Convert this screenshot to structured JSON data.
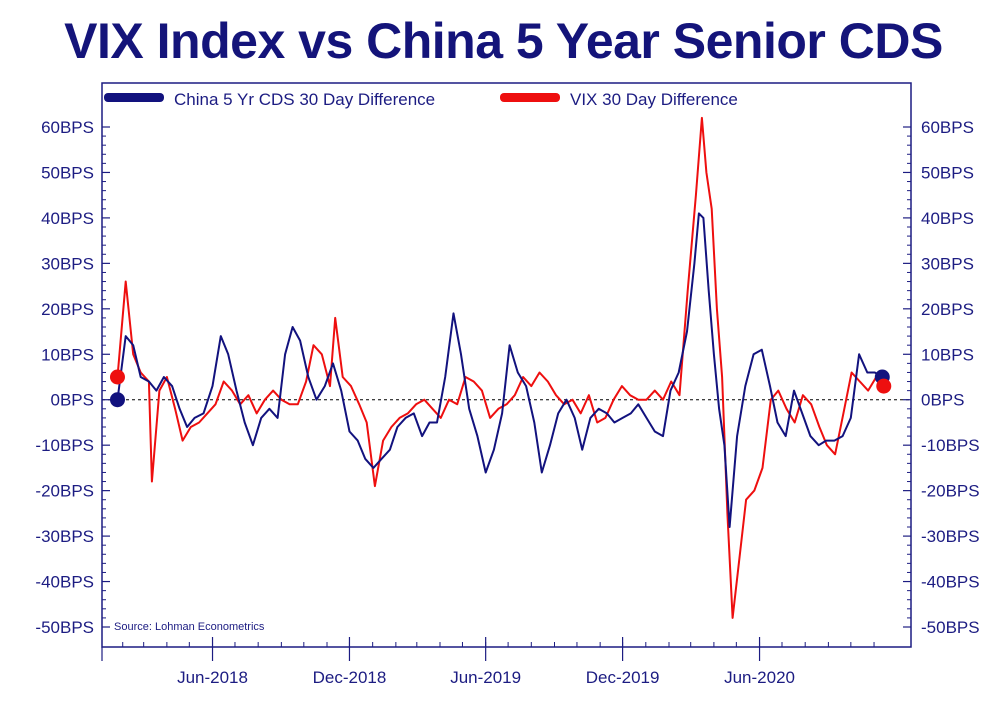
{
  "chart_data": {
    "type": "line",
    "title": "VIX Index vs China 5 Year Senior CDS",
    "xlabel": "",
    "ylabel": "",
    "source": "Source: Lohman Econometrics",
    "ylim": [
      -50,
      60
    ],
    "y_ticks": [
      "60BPS",
      "50BPS",
      "40BPS",
      "30BPS",
      "20BPS",
      "10BPS",
      "0BPS",
      "-10BPS",
      "-20BPS",
      "-30BPS",
      "-40BPS",
      "-50BPS"
    ],
    "y_tick_values": [
      60,
      50,
      40,
      30,
      20,
      10,
      0,
      -10,
      -20,
      -30,
      -40,
      -50
    ],
    "x_range": [
      "2018-01-15",
      "2020-11-25"
    ],
    "x_ticks": [
      {
        "label": "Jun-2018",
        "date": "2018-06-01"
      },
      {
        "label": "Dec-2018",
        "date": "2018-12-01"
      },
      {
        "label": "Jun-2019",
        "date": "2019-06-01"
      },
      {
        "label": "Dec-2019",
        "date": "2019-12-01"
      },
      {
        "label": "Jun-2020",
        "date": "2020-06-01"
      }
    ],
    "legend_placement": "top-left",
    "series": [
      {
        "name": "China 5 Yr CDS 30 Day Difference",
        "color": "#12127e",
        "points": [
          [
            "2018-01-25",
            0
          ],
          [
            "2018-02-05",
            14
          ],
          [
            "2018-02-15",
            12
          ],
          [
            "2018-02-25",
            5
          ],
          [
            "2018-03-08",
            4
          ],
          [
            "2018-03-18",
            2
          ],
          [
            "2018-03-28",
            5
          ],
          [
            "2018-04-08",
            3
          ],
          [
            "2018-04-18",
            -2
          ],
          [
            "2018-04-28",
            -6
          ],
          [
            "2018-05-08",
            -4
          ],
          [
            "2018-05-20",
            -3
          ],
          [
            "2018-06-01",
            3
          ],
          [
            "2018-06-12",
            14
          ],
          [
            "2018-06-22",
            10
          ],
          [
            "2018-07-03",
            2
          ],
          [
            "2018-07-14",
            -5
          ],
          [
            "2018-07-25",
            -10
          ],
          [
            "2018-08-05",
            -4
          ],
          [
            "2018-08-16",
            -2
          ],
          [
            "2018-08-27",
            -4
          ],
          [
            "2018-09-06",
            10
          ],
          [
            "2018-09-16",
            16
          ],
          [
            "2018-09-26",
            13
          ],
          [
            "2018-10-07",
            5
          ],
          [
            "2018-10-18",
            0
          ],
          [
            "2018-10-29",
            3
          ],
          [
            "2018-11-09",
            8
          ],
          [
            "2018-11-20",
            2
          ],
          [
            "2018-12-01",
            -7
          ],
          [
            "2018-12-12",
            -9
          ],
          [
            "2018-12-22",
            -13
          ],
          [
            "2019-01-02",
            -15
          ],
          [
            "2019-01-13",
            -13
          ],
          [
            "2019-01-24",
            -11
          ],
          [
            "2019-02-03",
            -6
          ],
          [
            "2019-02-14",
            -4
          ],
          [
            "2019-02-25",
            -3
          ],
          [
            "2019-03-08",
            -8
          ],
          [
            "2019-03-18",
            -5
          ],
          [
            "2019-03-28",
            -5
          ],
          [
            "2019-04-08",
            5
          ],
          [
            "2019-04-19",
            19
          ],
          [
            "2019-04-29",
            10
          ],
          [
            "2019-05-10",
            -2
          ],
          [
            "2019-05-21",
            -8
          ],
          [
            "2019-06-01",
            -16
          ],
          [
            "2019-06-12",
            -11
          ],
          [
            "2019-06-23",
            -3
          ],
          [
            "2019-07-03",
            12
          ],
          [
            "2019-07-14",
            6
          ],
          [
            "2019-07-25",
            3
          ],
          [
            "2019-08-05",
            -5
          ],
          [
            "2019-08-15",
            -16
          ],
          [
            "2019-08-26",
            -10
          ],
          [
            "2019-09-06",
            -3
          ],
          [
            "2019-09-17",
            0
          ],
          [
            "2019-09-28",
            -4
          ],
          [
            "2019-10-08",
            -11
          ],
          [
            "2019-10-19",
            -4
          ],
          [
            "2019-10-30",
            -2
          ],
          [
            "2019-11-10",
            -3
          ],
          [
            "2019-11-20",
            -5
          ],
          [
            "2019-12-01",
            -4
          ],
          [
            "2019-12-12",
            -3
          ],
          [
            "2019-12-22",
            -1
          ],
          [
            "2020-01-02",
            -4
          ],
          [
            "2020-01-13",
            -7
          ],
          [
            "2020-01-24",
            -8
          ],
          [
            "2020-02-03",
            2
          ],
          [
            "2020-02-14",
            6
          ],
          [
            "2020-02-25",
            15
          ],
          [
            "2020-03-06",
            30
          ],
          [
            "2020-03-12",
            41
          ],
          [
            "2020-03-18",
            40
          ],
          [
            "2020-03-25",
            24
          ],
          [
            "2020-04-01",
            10
          ],
          [
            "2020-04-08",
            -2
          ],
          [
            "2020-04-15",
            -10
          ],
          [
            "2020-04-22",
            -28
          ],
          [
            "2020-05-02",
            -8
          ],
          [
            "2020-05-13",
            3
          ],
          [
            "2020-05-24",
            10
          ],
          [
            "2020-06-04",
            11
          ],
          [
            "2020-06-15",
            3
          ],
          [
            "2020-06-25",
            -5
          ],
          [
            "2020-07-06",
            -8
          ],
          [
            "2020-07-17",
            2
          ],
          [
            "2020-07-28",
            -3
          ],
          [
            "2020-08-08",
            -8
          ],
          [
            "2020-08-19",
            -10
          ],
          [
            "2020-08-29",
            -9
          ],
          [
            "2020-09-09",
            -9
          ],
          [
            "2020-09-20",
            -8
          ],
          [
            "2020-10-01",
            -4
          ],
          [
            "2020-10-12",
            10
          ],
          [
            "2020-10-23",
            6
          ],
          [
            "2020-11-02",
            6
          ],
          [
            "2020-11-12",
            5
          ]
        ],
        "end_markers": [
          [
            "2018-01-25",
            0
          ],
          [
            "2020-11-12",
            5
          ]
        ]
      },
      {
        "name": "VIX 30 Day Difference",
        "color": "#ee0f0f",
        "points": [
          [
            "2018-01-25",
            5
          ],
          [
            "2018-02-05",
            26
          ],
          [
            "2018-02-15",
            10
          ],
          [
            "2018-02-25",
            6
          ],
          [
            "2018-03-08",
            4
          ],
          [
            "2018-03-12",
            -18
          ],
          [
            "2018-03-22",
            2
          ],
          [
            "2018-04-01",
            5
          ],
          [
            "2018-04-12",
            -2
          ],
          [
            "2018-04-22",
            -9
          ],
          [
            "2018-05-03",
            -6
          ],
          [
            "2018-05-14",
            -5
          ],
          [
            "2018-05-25",
            -3
          ],
          [
            "2018-06-05",
            -1
          ],
          [
            "2018-06-16",
            4
          ],
          [
            "2018-06-27",
            2
          ],
          [
            "2018-07-08",
            -1
          ],
          [
            "2018-07-19",
            1
          ],
          [
            "2018-07-30",
            -3
          ],
          [
            "2018-08-10",
            0
          ],
          [
            "2018-08-21",
            2
          ],
          [
            "2018-09-01",
            0
          ],
          [
            "2018-09-12",
            -1
          ],
          [
            "2018-09-23",
            -1
          ],
          [
            "2018-10-04",
            4
          ],
          [
            "2018-10-14",
            12
          ],
          [
            "2018-10-25",
            10
          ],
          [
            "2018-11-05",
            3
          ],
          [
            "2018-11-12",
            18
          ],
          [
            "2018-11-22",
            5
          ],
          [
            "2018-12-03",
            3
          ],
          [
            "2018-12-14",
            -1
          ],
          [
            "2018-12-24",
            -5
          ],
          [
            "2019-01-04",
            -19
          ],
          [
            "2019-01-15",
            -9
          ],
          [
            "2019-01-26",
            -6
          ],
          [
            "2019-02-06",
            -4
          ],
          [
            "2019-02-17",
            -3
          ],
          [
            "2019-02-28",
            -1
          ],
          [
            "2019-03-11",
            0
          ],
          [
            "2019-03-22",
            -2
          ],
          [
            "2019-04-02",
            -4
          ],
          [
            "2019-04-13",
            0
          ],
          [
            "2019-04-24",
            -1
          ],
          [
            "2019-05-05",
            5
          ],
          [
            "2019-05-16",
            4
          ],
          [
            "2019-05-27",
            2
          ],
          [
            "2019-06-07",
            -4
          ],
          [
            "2019-06-18",
            -2
          ],
          [
            "2019-06-29",
            -1
          ],
          [
            "2019-07-10",
            1
          ],
          [
            "2019-07-21",
            5
          ],
          [
            "2019-08-01",
            3
          ],
          [
            "2019-08-12",
            6
          ],
          [
            "2019-08-23",
            4
          ],
          [
            "2019-09-03",
            1
          ],
          [
            "2019-09-14",
            -1
          ],
          [
            "2019-09-25",
            0
          ],
          [
            "2019-10-06",
            -3
          ],
          [
            "2019-10-17",
            1
          ],
          [
            "2019-10-28",
            -5
          ],
          [
            "2019-11-08",
            -4
          ],
          [
            "2019-11-19",
            0
          ],
          [
            "2019-11-30",
            3
          ],
          [
            "2019-12-11",
            1
          ],
          [
            "2019-12-22",
            0
          ],
          [
            "2020-01-02",
            0
          ],
          [
            "2020-01-13",
            2
          ],
          [
            "2020-01-24",
            0
          ],
          [
            "2020-02-04",
            4
          ],
          [
            "2020-02-15",
            1
          ],
          [
            "2020-02-26",
            24
          ],
          [
            "2020-03-08",
            45
          ],
          [
            "2020-03-16",
            62
          ],
          [
            "2020-03-22",
            50
          ],
          [
            "2020-03-29",
            42
          ],
          [
            "2020-04-05",
            20
          ],
          [
            "2020-04-12",
            5
          ],
          [
            "2020-04-19",
            -25
          ],
          [
            "2020-04-26",
            -48
          ],
          [
            "2020-05-03",
            -38
          ],
          [
            "2020-05-14",
            -22
          ],
          [
            "2020-05-25",
            -20
          ],
          [
            "2020-06-05",
            -15
          ],
          [
            "2020-06-16",
            0
          ],
          [
            "2020-06-26",
            2
          ],
          [
            "2020-07-07",
            -2
          ],
          [
            "2020-07-18",
            -5
          ],
          [
            "2020-07-29",
            1
          ],
          [
            "2020-08-09",
            -1
          ],
          [
            "2020-08-20",
            -6
          ],
          [
            "2020-08-30",
            -10
          ],
          [
            "2020-09-10",
            -12
          ],
          [
            "2020-09-21",
            -3
          ],
          [
            "2020-10-02",
            6
          ],
          [
            "2020-10-13",
            4
          ],
          [
            "2020-10-24",
            2
          ],
          [
            "2020-11-04",
            5
          ],
          [
            "2020-11-14",
            3
          ]
        ],
        "end_markers": [
          [
            "2018-01-25",
            5
          ],
          [
            "2020-11-14",
            3
          ]
        ]
      }
    ]
  },
  "colors": {
    "axis": "#1c1c82",
    "title": "#14147a",
    "cds": "#12127e",
    "vix": "#ee0f0f"
  }
}
